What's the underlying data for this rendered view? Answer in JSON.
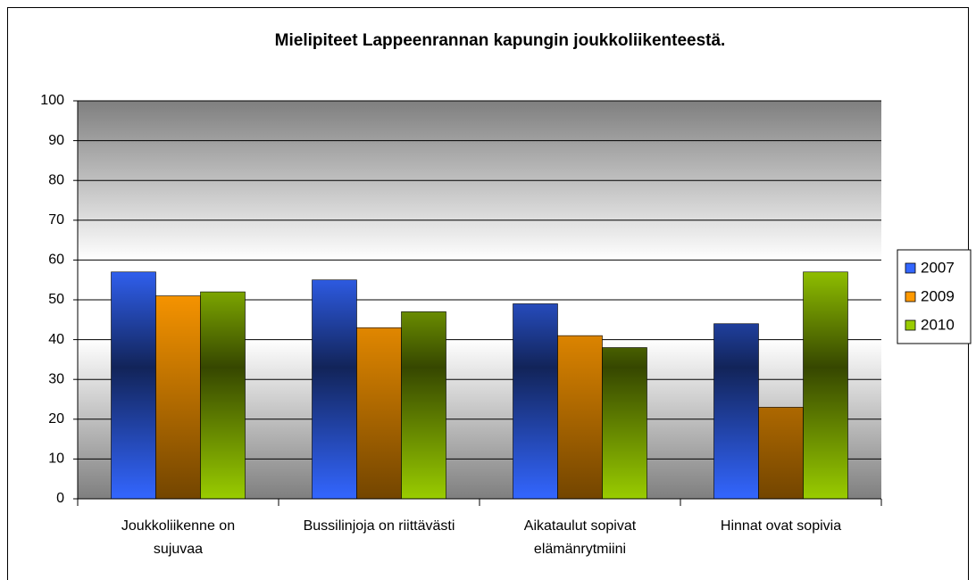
{
  "chart_data": {
    "type": "bar",
    "title": "Mielipiteet Lappeenrannan kapungin joukkoliikenteestä.",
    "categories": [
      "Joukkoliikenne on sujuvaa",
      "Bussilinjoja on riittävästi",
      "Aikataulut sopivat elämänrytmiini",
      "Hinnat ovat sopivia"
    ],
    "series": [
      {
        "name": "2007",
        "color": "#3366ff",
        "values": [
          57,
          55,
          49,
          44
        ]
      },
      {
        "name": "2009",
        "color": "#ff9900",
        "values": [
          51,
          43,
          41,
          23
        ]
      },
      {
        "name": "2010",
        "color": "#99cc00",
        "values": [
          52,
          47,
          38,
          57
        ]
      }
    ],
    "ylim": [
      0,
      100
    ],
    "yticks": [
      0,
      10,
      20,
      30,
      40,
      50,
      60,
      70,
      80,
      90,
      100
    ],
    "grid": true,
    "legend": "right"
  }
}
